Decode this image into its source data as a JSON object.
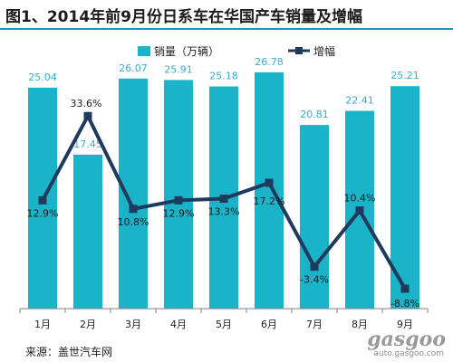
{
  "title": "图1、2014年前9月份日系车在华国产车销量及增幅",
  "source": "来源：盖世汽车网",
  "watermark": {
    "main": "gasgoo",
    "sub": "auto.gasgoo.com"
  },
  "colors": {
    "bar": "#1bb3c8",
    "line": "#1f3a5c",
    "bar_label": "#3aaed0",
    "line_label": "#1b1b1b",
    "axis": "#7f7f7f"
  },
  "chart_data": {
    "type": "bar",
    "categories": [
      "1月",
      "2月",
      "3月",
      "4月",
      "5月",
      "6月",
      "7月",
      "8月",
      "9月"
    ],
    "series": [
      {
        "name": "销量（万辆）",
        "type": "bar",
        "values": [
          25.04,
          17.45,
          26.07,
          25.91,
          25.18,
          26.78,
          20.81,
          22.41,
          25.21
        ],
        "labels": [
          "25.04",
          "17.45",
          "26.07",
          "25.91",
          "25.18",
          "26.78",
          "20.81",
          "22.41",
          "25.21"
        ]
      },
      {
        "name": "增幅",
        "type": "line",
        "values": [
          12.9,
          33.6,
          10.8,
          12.9,
          13.3,
          17.2,
          -3.4,
          10.4,
          -8.8
        ],
        "labels": [
          "12.9%",
          "33.6%",
          "10.8%",
          "12.9%",
          "13.3%",
          "17.2%",
          "-3.4%",
          "10.4%",
          "-8.8%"
        ]
      }
    ],
    "ylim_bar": [
      0,
      30
    ],
    "ylim_line": [
      -12,
      36
    ],
    "legend_position": "top-left",
    "grid": false
  }
}
